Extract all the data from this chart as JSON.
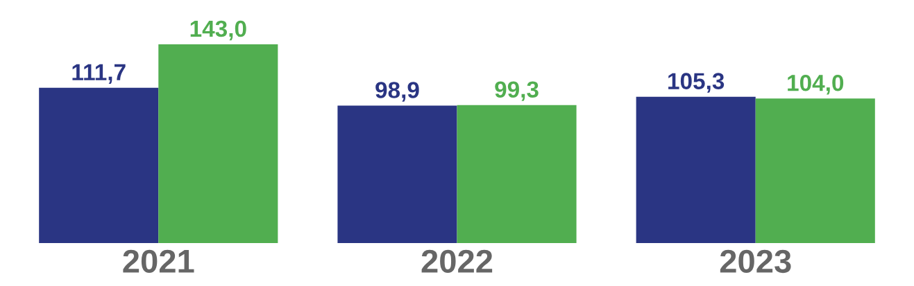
{
  "chart_data": {
    "type": "bar",
    "categories": [
      "2021",
      "2022",
      "2023"
    ],
    "series": [
      {
        "color": "#2a3583",
        "values": [
          111.7,
          98.9,
          105.3
        ],
        "value_labels": [
          "111,7",
          "98,9",
          "105,3"
        ]
      },
      {
        "color": "#51ae50",
        "values": [
          143.0,
          99.3,
          104.0
        ],
        "value_labels": [
          "143,0",
          "99,3",
          "104,0"
        ]
      }
    ],
    "grid": false,
    "legend": false
  }
}
